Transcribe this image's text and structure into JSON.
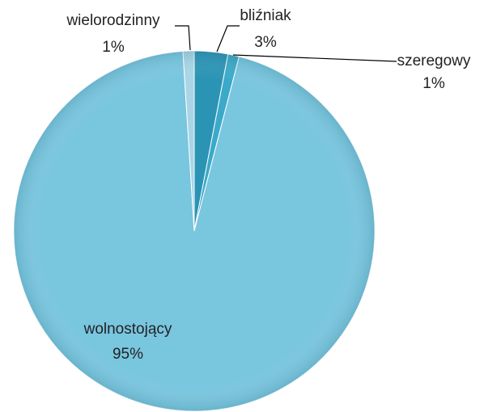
{
  "chart_data": {
    "type": "pie",
    "categories": [
      "bliźniak",
      "szeregowy",
      "wolnostojący",
      "wielorodzinny"
    ],
    "values": [
      3,
      1,
      95,
      1
    ],
    "value_labels": [
      "3%",
      "1%",
      "95%",
      "1%"
    ],
    "colors": [
      "#2b94b4",
      "#3ba9c9",
      "#79c6df",
      "#a9d5e6"
    ]
  }
}
